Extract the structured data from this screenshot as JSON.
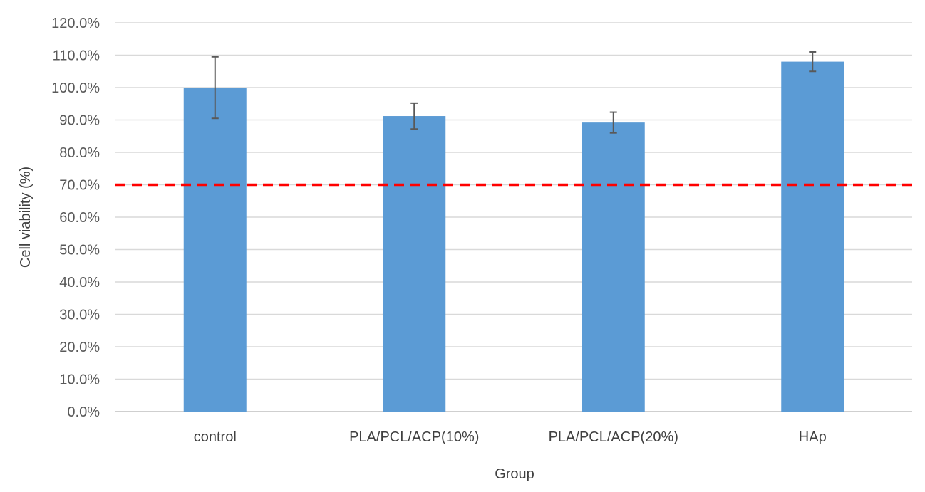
{
  "chart_data": {
    "type": "bar",
    "xlabel": "Group",
    "ylabel": "Cell viability (%)",
    "categories": [
      "control",
      "PLA/PCL/ACP(10%)",
      "PLA/PCL/ACP(20%)",
      "HAp"
    ],
    "values": [
      100.0,
      91.2,
      89.2,
      108.0
    ],
    "error": [
      9.5,
      4.0,
      3.2,
      3.0
    ],
    "ylim": [
      0,
      120
    ],
    "ytick_step": 10,
    "ytick_labels": [
      "0.0%",
      "10.0%",
      "20.0%",
      "30.0%",
      "40.0%",
      "50.0%",
      "60.0%",
      "70.0%",
      "80.0%",
      "90.0%",
      "100.0%",
      "110.0%",
      "120.0%"
    ],
    "reference_line": {
      "value": 70,
      "style": "dashed",
      "color": "#ff0000"
    },
    "grid": true,
    "bar_color": "#5b9bd5",
    "error_color": "#595959",
    "grid_color": "#d9d9d9"
  }
}
